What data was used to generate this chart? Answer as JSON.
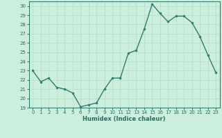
{
  "x": [
    0,
    1,
    2,
    3,
    4,
    5,
    6,
    7,
    8,
    9,
    10,
    11,
    12,
    13,
    14,
    15,
    16,
    17,
    18,
    19,
    20,
    21,
    22,
    23
  ],
  "y": [
    23.0,
    21.8,
    22.2,
    21.2,
    21.0,
    20.6,
    19.1,
    19.3,
    19.5,
    21.0,
    22.2,
    22.2,
    24.9,
    25.2,
    27.5,
    30.2,
    29.2,
    28.3,
    28.9,
    28.9,
    28.2,
    26.7,
    24.7,
    22.8
  ],
  "line_color": "#2e7d6e",
  "marker_color": "#2e7d6e",
  "bg_color": "#cceedd",
  "grid_color": "#bbddcc",
  "xlabel": "Humidex (Indice chaleur)",
  "ylabel_ticks": [
    19,
    20,
    21,
    22,
    23,
    24,
    25,
    26,
    27,
    28,
    29,
    30
  ],
  "xlim": [
    -0.5,
    23.5
  ],
  "ylim": [
    19,
    30.5
  ],
  "tick_color": "#2e6b5e",
  "spine_color": "#2e7d6e"
}
